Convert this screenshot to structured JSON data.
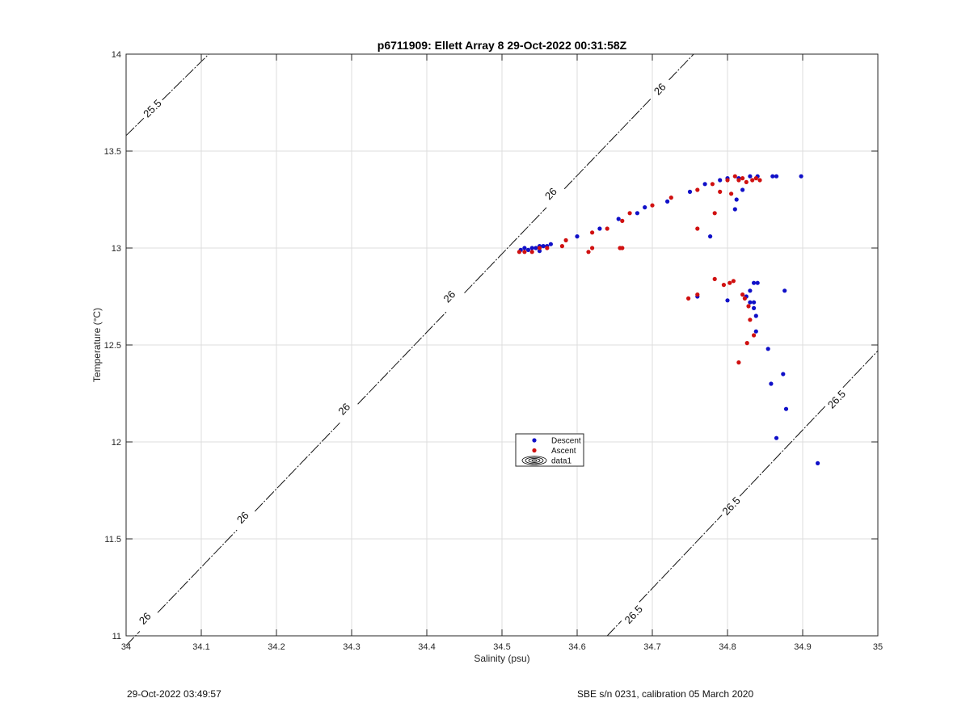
{
  "chart_data": {
    "type": "scatter",
    "title": "p6711909: Ellett Array 8 29-Oct-2022 00:31:58Z",
    "xlabel": "Salinity (psu)",
    "ylabel": "Temperature (°C)",
    "xlim": [
      34,
      35
    ],
    "ylim": [
      11,
      14
    ],
    "xticks": [
      "34",
      "34.1",
      "34.2",
      "34.3",
      "34.4",
      "34.5",
      "34.6",
      "34.7",
      "34.8",
      "34.9",
      "35"
    ],
    "yticks": [
      "11",
      "11.5",
      "12",
      "12.5",
      "13",
      "13.5",
      "14"
    ],
    "grid": true,
    "legend_position": "center",
    "legend": [
      {
        "label": "Descent",
        "color": "#1010c8",
        "marker": "dot"
      },
      {
        "label": "Ascent",
        "color": "#d01010",
        "marker": "dot"
      },
      {
        "label": "data1",
        "color": "#000000",
        "marker": "contour"
      }
    ],
    "density_contours": [
      {
        "label": "25.5",
        "points": [
          [
            34.0,
            13.58
          ],
          [
            34.11,
            14.0
          ]
        ],
        "labels_at": [
          [
            34.035,
            13.72
          ]
        ]
      },
      {
        "label": "26",
        "points": [
          [
            34.0,
            10.95
          ],
          [
            34.755,
            14.0
          ]
        ],
        "labels_at": [
          [
            34.025,
            11.09
          ],
          [
            34.155,
            11.61
          ],
          [
            34.29,
            12.17
          ],
          [
            34.43,
            12.75
          ],
          [
            34.565,
            13.28
          ],
          [
            34.71,
            13.82
          ]
        ]
      },
      {
        "label": "26.5",
        "points": [
          [
            34.64,
            11.0
          ],
          [
            35.0,
            12.47
          ]
        ],
        "labels_at": [
          [
            34.675,
            11.11
          ],
          [
            34.805,
            11.67
          ],
          [
            34.945,
            12.22
          ]
        ]
      }
    ],
    "series": [
      {
        "name": "Descent",
        "color": "#1010c8",
        "points": [
          [
            34.525,
            12.99
          ],
          [
            34.53,
            13.0
          ],
          [
            34.535,
            12.99
          ],
          [
            34.54,
            13.0
          ],
          [
            34.545,
            13.0
          ],
          [
            34.55,
            13.01
          ],
          [
            34.555,
            13.01
          ],
          [
            34.56,
            13.01
          ],
          [
            34.565,
            13.02
          ],
          [
            34.55,
            12.985
          ],
          [
            34.6,
            13.06
          ],
          [
            34.63,
            13.1
          ],
          [
            34.655,
            13.15
          ],
          [
            34.68,
            13.18
          ],
          [
            34.69,
            13.21
          ],
          [
            34.72,
            13.24
          ],
          [
            34.75,
            13.29
          ],
          [
            34.77,
            13.33
          ],
          [
            34.79,
            13.35
          ],
          [
            34.8,
            13.36
          ],
          [
            34.815,
            13.36
          ],
          [
            34.83,
            13.37
          ],
          [
            34.84,
            13.37
          ],
          [
            34.86,
            13.37
          ],
          [
            34.865,
            13.37
          ],
          [
            34.898,
            13.37
          ],
          [
            34.82,
            13.3
          ],
          [
            34.812,
            13.25
          ],
          [
            34.81,
            13.2
          ],
          [
            34.777,
            13.06
          ],
          [
            34.76,
            12.75
          ],
          [
            34.8,
            12.73
          ],
          [
            34.825,
            12.75
          ],
          [
            34.83,
            12.72
          ],
          [
            34.835,
            12.72
          ],
          [
            34.84,
            12.82
          ],
          [
            34.835,
            12.82
          ],
          [
            34.83,
            12.78
          ],
          [
            34.835,
            12.69
          ],
          [
            34.838,
            12.65
          ],
          [
            34.838,
            12.57
          ],
          [
            34.854,
            12.48
          ],
          [
            34.858,
            12.3
          ],
          [
            34.874,
            12.35
          ],
          [
            34.878,
            12.17
          ],
          [
            34.865,
            12.02
          ],
          [
            34.876,
            12.78
          ],
          [
            34.92,
            11.89
          ]
        ]
      },
      {
        "name": "Ascent",
        "color": "#d01010",
        "points": [
          [
            34.523,
            12.98
          ],
          [
            34.53,
            12.98
          ],
          [
            34.54,
            12.98
          ],
          [
            34.55,
            13.0
          ],
          [
            34.56,
            13.0
          ],
          [
            34.58,
            13.01
          ],
          [
            34.585,
            13.04
          ],
          [
            34.62,
            13.08
          ],
          [
            34.615,
            12.98
          ],
          [
            34.62,
            13.0
          ],
          [
            34.64,
            13.1
          ],
          [
            34.66,
            13.0
          ],
          [
            34.657,
            13.0
          ],
          [
            34.66,
            13.14
          ],
          [
            34.67,
            13.18
          ],
          [
            34.7,
            13.22
          ],
          [
            34.725,
            13.26
          ],
          [
            34.76,
            13.3
          ],
          [
            34.78,
            13.33
          ],
          [
            34.8,
            13.35
          ],
          [
            34.81,
            13.37
          ],
          [
            34.815,
            13.35
          ],
          [
            34.82,
            13.36
          ],
          [
            34.825,
            13.34
          ],
          [
            34.79,
            13.29
          ],
          [
            34.805,
            13.28
          ],
          [
            34.783,
            13.18
          ],
          [
            34.76,
            13.1
          ],
          [
            34.783,
            12.84
          ],
          [
            34.795,
            12.81
          ],
          [
            34.803,
            12.82
          ],
          [
            34.808,
            12.83
          ],
          [
            34.76,
            12.76
          ],
          [
            34.748,
            12.74
          ],
          [
            34.82,
            12.76
          ],
          [
            34.823,
            12.74
          ],
          [
            34.828,
            12.7
          ],
          [
            34.83,
            12.63
          ],
          [
            34.835,
            12.55
          ],
          [
            34.826,
            12.51
          ],
          [
            34.815,
            12.41
          ],
          [
            34.833,
            13.35
          ],
          [
            34.843,
            13.35
          ],
          [
            34.838,
            13.36
          ]
        ]
      }
    ]
  },
  "footer": {
    "left": "29-Oct-2022 03:49:57",
    "right": "SBE s/n 0231, calibration 05 March 2020"
  }
}
